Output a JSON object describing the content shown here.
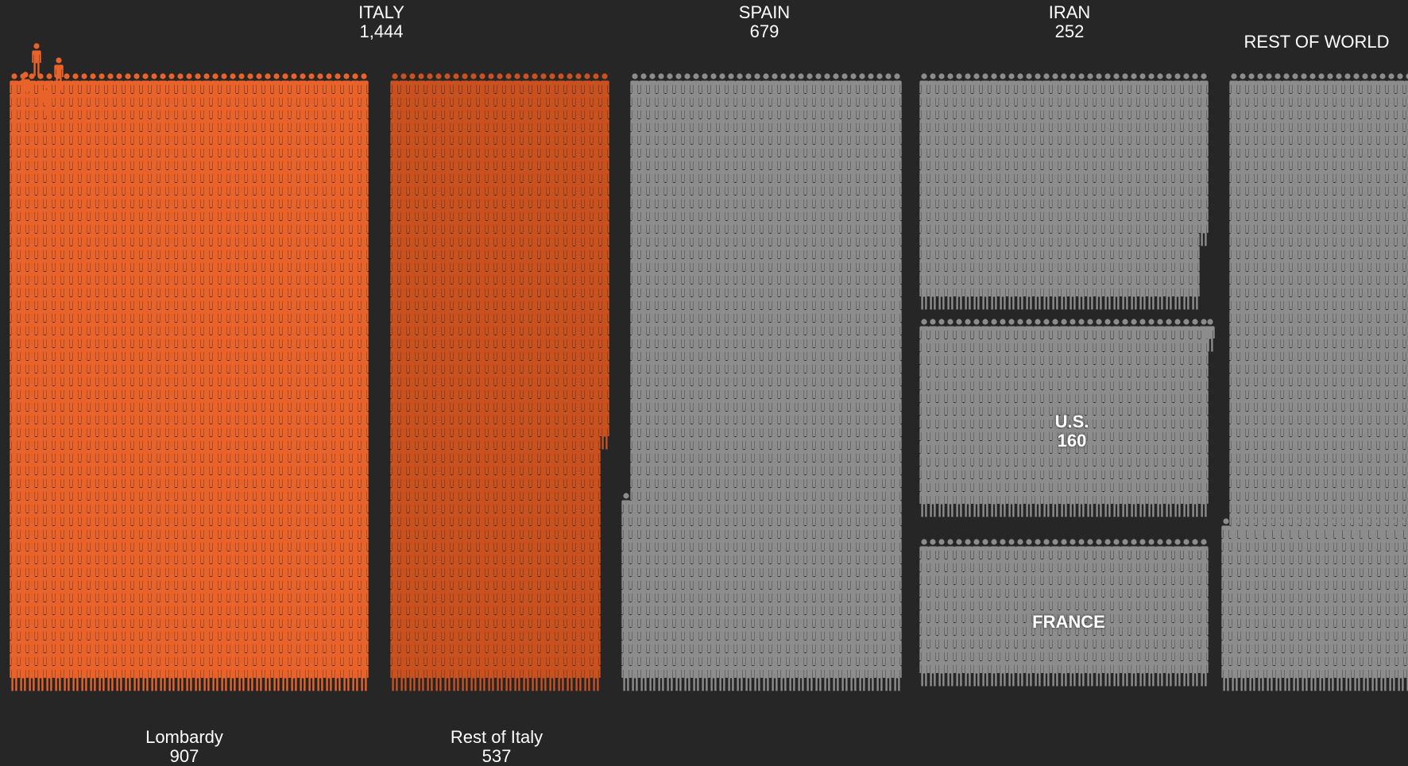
{
  "chart_data": {
    "type": "pictogram",
    "title": "",
    "groups": [
      {
        "name": "ITALY",
        "value": 1444,
        "value_label": "1,444",
        "color": "#e8622a",
        "subgroups": [
          {
            "name": "Lombardy",
            "value": 907,
            "value_label": "907",
            "color": "#e8622a"
          },
          {
            "name": "Rest of Italy",
            "value": 537,
            "value_label": "537",
            "color": "#c9501f"
          }
        ]
      },
      {
        "name": "SPAIN",
        "value": 679,
        "value_label": "679",
        "color": "#8c8c8c"
      },
      {
        "name": "IRAN",
        "value": 252,
        "value_label": "252",
        "color": "#8c8c8c"
      },
      {
        "name": "U.S.",
        "value": 160,
        "value_label": "160",
        "color": "#8c8c8c"
      },
      {
        "name": "FRANCE",
        "value": null,
        "value_label": "",
        "color": "#8c8c8c"
      },
      {
        "name": "REST OF WORLD",
        "value": null,
        "value_label": "",
        "color": "#8c8c8c"
      }
    ]
  },
  "labels": {
    "italy_name": "ITALY",
    "italy_value": "1,444",
    "spain_name": "SPAIN",
    "spain_value": "679",
    "iran_name": "IRAN",
    "iran_value": "252",
    "us_name": "U.S.",
    "us_value": "160",
    "france_name": "FRANCE",
    "rest_world_name": "REST OF WORLD",
    "lombardy_name": "Lombardy",
    "lombardy_value": "907",
    "rest_italy_name": "Rest of Italy",
    "rest_italy_value": "537"
  },
  "colors": {
    "background": "#262626",
    "italy_lombardy": "#e8622a",
    "italy_rest": "#c9501f",
    "other": "#8c8c8c",
    "text": "#ffffff"
  },
  "icons": {
    "person": "person-icon"
  }
}
